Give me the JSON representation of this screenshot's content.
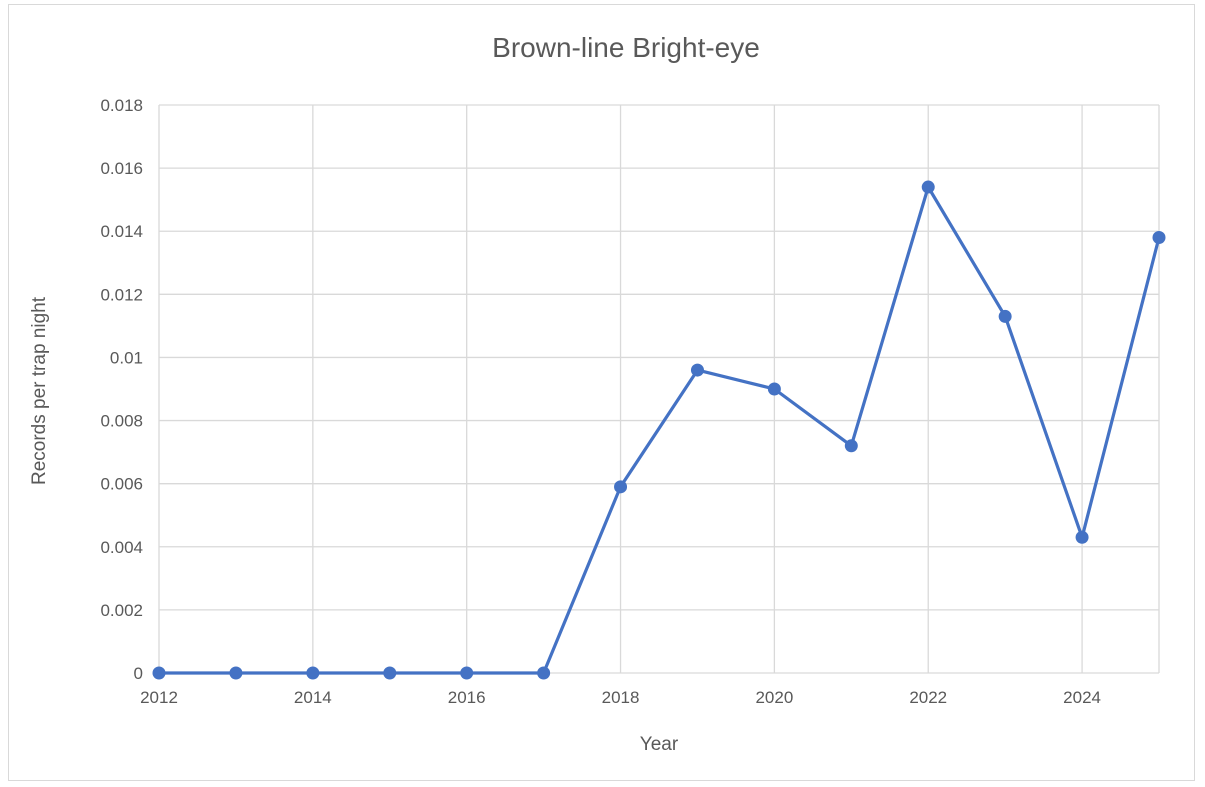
{
  "chart_data": {
    "type": "line",
    "title": "Brown-line Bright-eye",
    "xlabel": "Year",
    "ylabel": "Records per trap night",
    "xlim": [
      2012,
      2025
    ],
    "ylim": [
      0,
      0.018
    ],
    "x_ticks": [
      "2012",
      "2014",
      "2016",
      "2018",
      "2020",
      "2022",
      "2024"
    ],
    "y_ticks": [
      "0",
      "0.002",
      "0.004",
      "0.006",
      "0.008",
      "0.01",
      "0.012",
      "0.014",
      "0.016",
      "0.018"
    ],
    "grid": true,
    "legend": "none",
    "series": [
      {
        "color": "#4472c4",
        "x": [
          2012,
          2013,
          2014,
          2015,
          2016,
          2017,
          2018,
          2019,
          2020,
          2021,
          2022,
          2023,
          2024,
          2025
        ],
        "values": [
          0,
          0,
          0,
          0,
          0,
          0,
          0.0059,
          0.0096,
          0.009,
          0.0072,
          0.0154,
          0.0113,
          0.0043,
          0.0138
        ]
      }
    ]
  }
}
